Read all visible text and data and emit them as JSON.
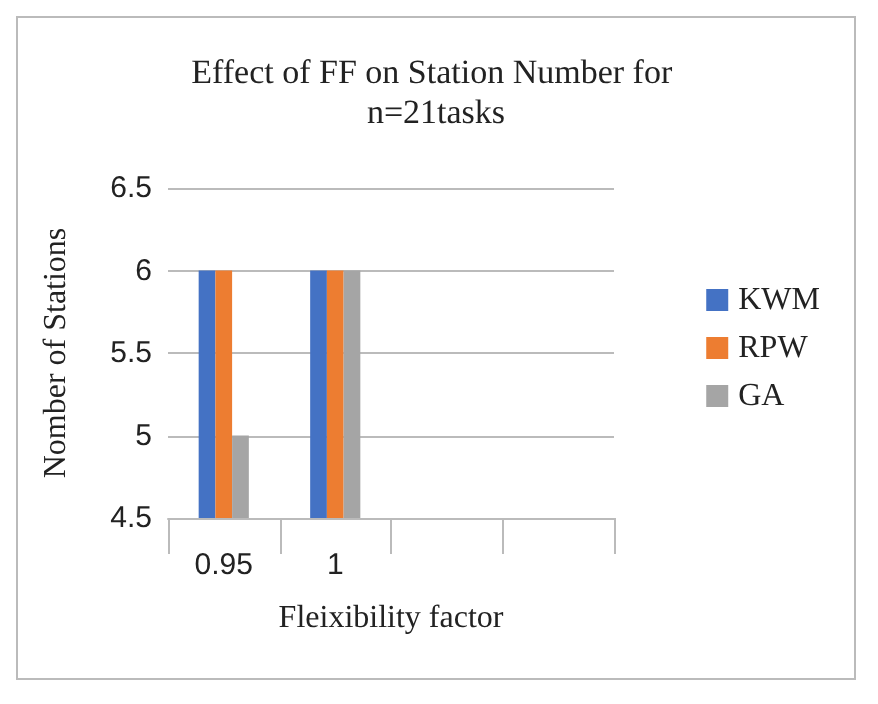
{
  "chart_data": {
    "type": "bar",
    "title": "Effect of FF on Station Number for n=21tasks",
    "xlabel": "Fleixibility factor",
    "ylabel": "Nomber of Stations",
    "categories": [
      "0.95",
      "1",
      null,
      null
    ],
    "series": [
      {
        "name": "KWM",
        "color": "#4472c4",
        "values": [
          6,
          6,
          null,
          null
        ]
      },
      {
        "name": "RPW",
        "color": "#ed7d31",
        "values": [
          6,
          6,
          null,
          null
        ]
      },
      {
        "name": "GA",
        "color": "#a5a5a5",
        "values": [
          5,
          6,
          null,
          null
        ]
      }
    ],
    "ylim": [
      4.5,
      6.5
    ],
    "yticks": [
      4.5,
      5,
      5.5,
      6,
      6.5
    ],
    "grid": "y",
    "legend": "right"
  }
}
